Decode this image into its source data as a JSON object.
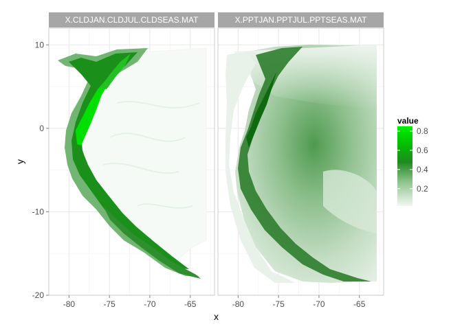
{
  "chart_data": {
    "type": "heatmap",
    "facets": [
      {
        "label": "X.CLDJAN.CLDJUL.CLDSEAS.MAT"
      },
      {
        "label": "X.PPTJAN.PPTJUL.PPTSEAS.MAT"
      }
    ],
    "xlabel": "x",
    "ylabel": "y",
    "xlim": [
      -82.5,
      -62
    ],
    "ylim": [
      -20,
      12
    ],
    "x_ticks": [
      -80,
      -75,
      -70,
      -65
    ],
    "y_ticks": [
      10,
      0,
      -10,
      -20
    ],
    "grid": true,
    "legend": {
      "title": "value",
      "position": "right",
      "ticks": [
        0.8,
        0.6,
        0.4,
        0.2
      ],
      "range": [
        0.02,
        0.85
      ],
      "colors": [
        "#f4fbf4",
        "#7bb87b",
        "#007a00",
        "#00ee00"
      ]
    }
  },
  "colors": {
    "panel_bg": "#ffffff",
    "strip_bg": "#a6a6a6",
    "strip_text": "#ffffff",
    "grid_major": "#ebebeb",
    "grid_minor": "#f5f5f5",
    "panel_border": "#cccccc"
  }
}
